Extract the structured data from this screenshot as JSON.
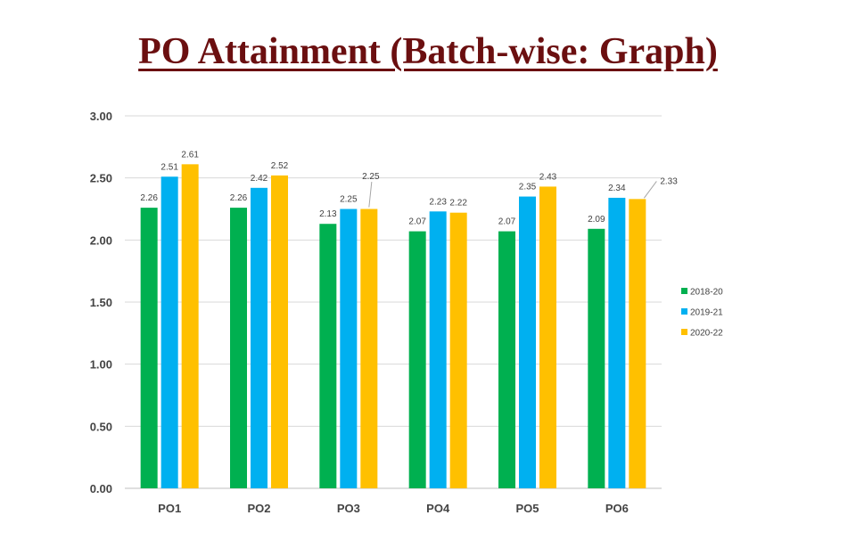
{
  "title": "PO Attainment (Batch-wise: Graph)",
  "chart_data": {
    "type": "bar",
    "title": "",
    "xlabel": "",
    "ylabel": "",
    "ylim": [
      0,
      3
    ],
    "y_ticks": [
      "0.00",
      "0.50",
      "1.00",
      "1.50",
      "2.00",
      "2.50",
      "3.00"
    ],
    "categories": [
      "PO1",
      "PO2",
      "PO3",
      "PO4",
      "PO5",
      "PO6"
    ],
    "series": [
      {
        "name": "2018-20",
        "color": "#00b050",
        "values": [
          2.26,
          2.26,
          2.13,
          2.07,
          2.07,
          2.09
        ],
        "labels": [
          "2.26",
          "2.26",
          "2.13",
          "2.07",
          "2.07",
          "2.09"
        ]
      },
      {
        "name": "2019-21",
        "color": "#00b0f0",
        "values": [
          2.51,
          2.42,
          2.25,
          2.23,
          2.35,
          2.34
        ],
        "labels": [
          "2.51",
          "2.42",
          "2.25",
          "2.23",
          "2.35",
          "2.34"
        ]
      },
      {
        "name": "2020-22",
        "color": "#ffc000",
        "values": [
          2.61,
          2.52,
          2.25,
          2.22,
          2.43,
          2.33
        ],
        "labels": [
          "2.61",
          "2.52",
          "2.25",
          "2.22",
          "2.43",
          "2.33"
        ]
      }
    ],
    "grid": true,
    "legend_position": "right"
  }
}
